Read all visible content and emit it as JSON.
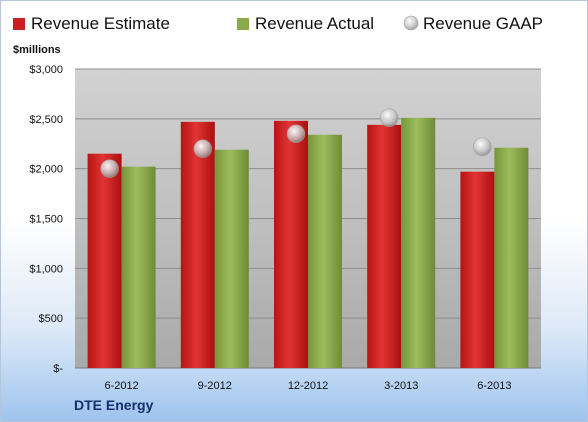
{
  "chart_data": {
    "type": "bar",
    "categories": [
      "6-2012",
      "9-2012",
      "12-2012",
      "3-2013",
      "6-2013"
    ],
    "series": [
      {
        "name": "Revenue Estimate",
        "values": [
          2150,
          2470,
          2480,
          2440,
          1970
        ],
        "color": "#cc1f1f"
      },
      {
        "name": "Revenue Actual",
        "values": [
          2020,
          2190,
          2340,
          2510,
          2210
        ],
        "color": "#8aab4d"
      }
    ],
    "markers": {
      "name": "Revenue GAAP",
      "values": [
        2000,
        2200,
        2350,
        2510,
        2220
      ],
      "color": "#c8c8c8"
    },
    "ylabel": "$millions",
    "ylim": [
      0,
      3000
    ],
    "yticks": [
      {
        "value": 0,
        "label": "$-"
      },
      {
        "value": 500,
        "label": "$500"
      },
      {
        "value": 1000,
        "label": "$1,000"
      },
      {
        "value": 1500,
        "label": "$1,500"
      },
      {
        "value": 2000,
        "label": "$2,000"
      },
      {
        "value": 2500,
        "label": "$2,500"
      },
      {
        "value": 3000,
        "label": "$3,000"
      }
    ],
    "grid": true,
    "legend": "top"
  },
  "company": "DTE Energy"
}
